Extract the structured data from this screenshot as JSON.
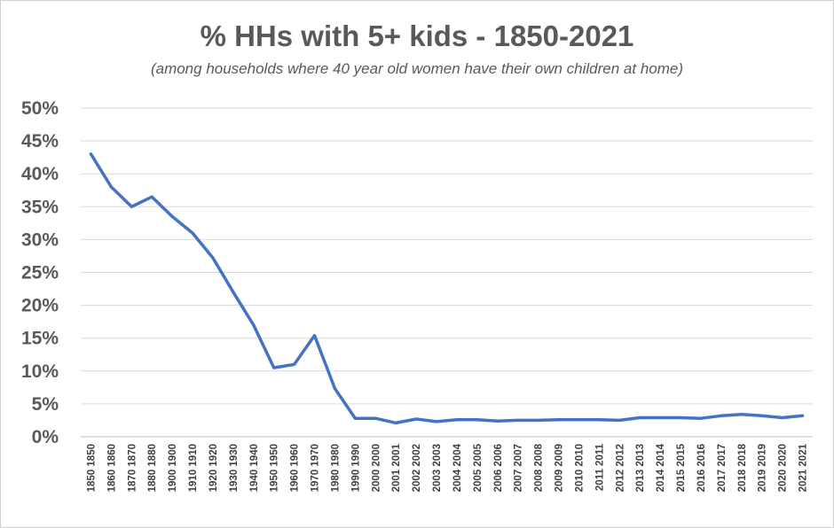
{
  "chart_data": {
    "type": "line",
    "title": "% HHs with 5+ kids - 1850-2021",
    "subtitle": "(among households where 40 year old women have their own children at home)",
    "xlabel": "",
    "ylabel": "",
    "ylim": [
      0,
      0.5
    ],
    "yticks": [
      "0%",
      "5%",
      "10%",
      "15%",
      "20%",
      "25%",
      "30%",
      "35%",
      "40%",
      "45%",
      "50%"
    ],
    "grid": true,
    "legend": "none",
    "categories": [
      "1850 1850",
      "1860 1860",
      "1870 1870",
      "1880 1880",
      "1900 1900",
      "1910 1910",
      "1920 1920",
      "1930 1930",
      "1940 1940",
      "1950 1950",
      "1960 1960",
      "1970 1970",
      "1980 1980",
      "1990 1990",
      "2000 2000",
      "2001 2001",
      "2002 2002",
      "2003 2003",
      "2004 2004",
      "2005 2005",
      "2006 2006",
      "2007 2007",
      "2008 2008",
      "2009 2009",
      "2010 2010",
      "2011 2011",
      "2012 2012",
      "2013 2013",
      "2014 2014",
      "2015 2015",
      "2016 2016",
      "2017 2017",
      "2018 2018",
      "2019 2019",
      "2020 2020",
      "2021 2021"
    ],
    "values": [
      0.43,
      0.38,
      0.35,
      0.365,
      0.335,
      0.31,
      0.272,
      0.22,
      0.17,
      0.105,
      0.11,
      0.154,
      0.073,
      0.028,
      0.028,
      0.021,
      0.027,
      0.023,
      0.026,
      0.026,
      0.024,
      0.025,
      0.025,
      0.026,
      0.026,
      0.026,
      0.025,
      0.029,
      0.029,
      0.029,
      0.028,
      0.032,
      0.034,
      0.032,
      0.029,
      0.032
    ],
    "line_color": "#4472C4",
    "grid_color": "#d9d9d9"
  }
}
